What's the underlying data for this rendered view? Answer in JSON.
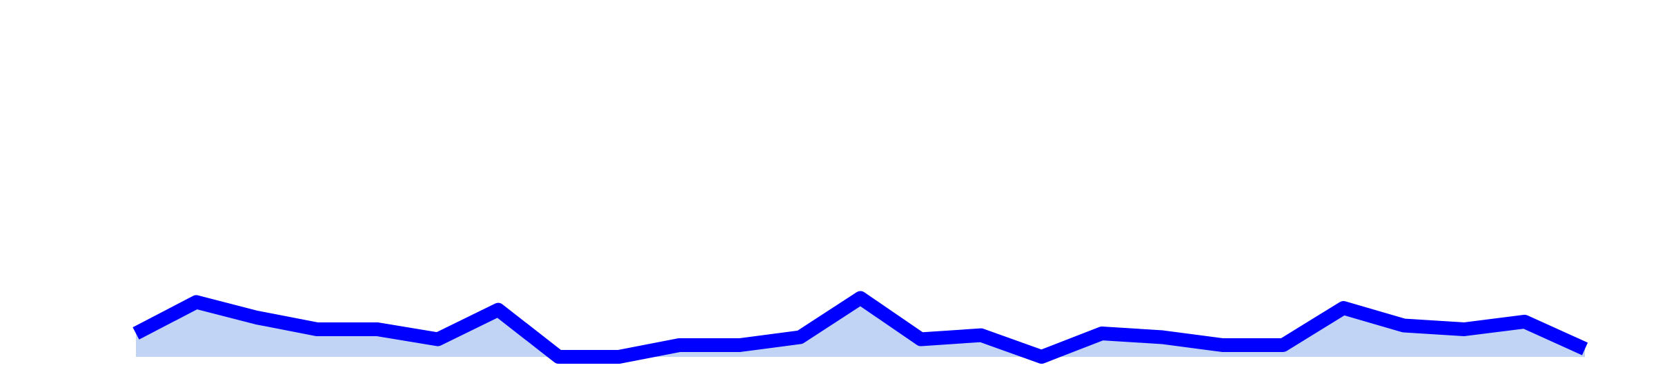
{
  "chart_data": {
    "type": "area",
    "title": "",
    "xlabel": "",
    "ylabel": "",
    "x": [
      1,
      2,
      3,
      4,
      5,
      6,
      7,
      8,
      9,
      10,
      11,
      12,
      13,
      14,
      15,
      16,
      17,
      18,
      19,
      20,
      21,
      22,
      23,
      24,
      25
    ],
    "series": [
      {
        "values": [
          0.92,
          2.15,
          1.54,
          1.08,
          1.08,
          0.69,
          1.85,
          0.0,
          0.0,
          0.46,
          0.46,
          0.77,
          2.31,
          0.69,
          0.85,
          0.0,
          0.92,
          0.77,
          0.46,
          0.46,
          1.92,
          1.23,
          1.08,
          1.38,
          0.31
        ],
        "line_color": "#0000ff",
        "fill_color": "#c2d4f5"
      }
    ],
    "ylim": [
      0,
      14
    ],
    "grid": false,
    "legend": "none",
    "axes_visible": false
  }
}
